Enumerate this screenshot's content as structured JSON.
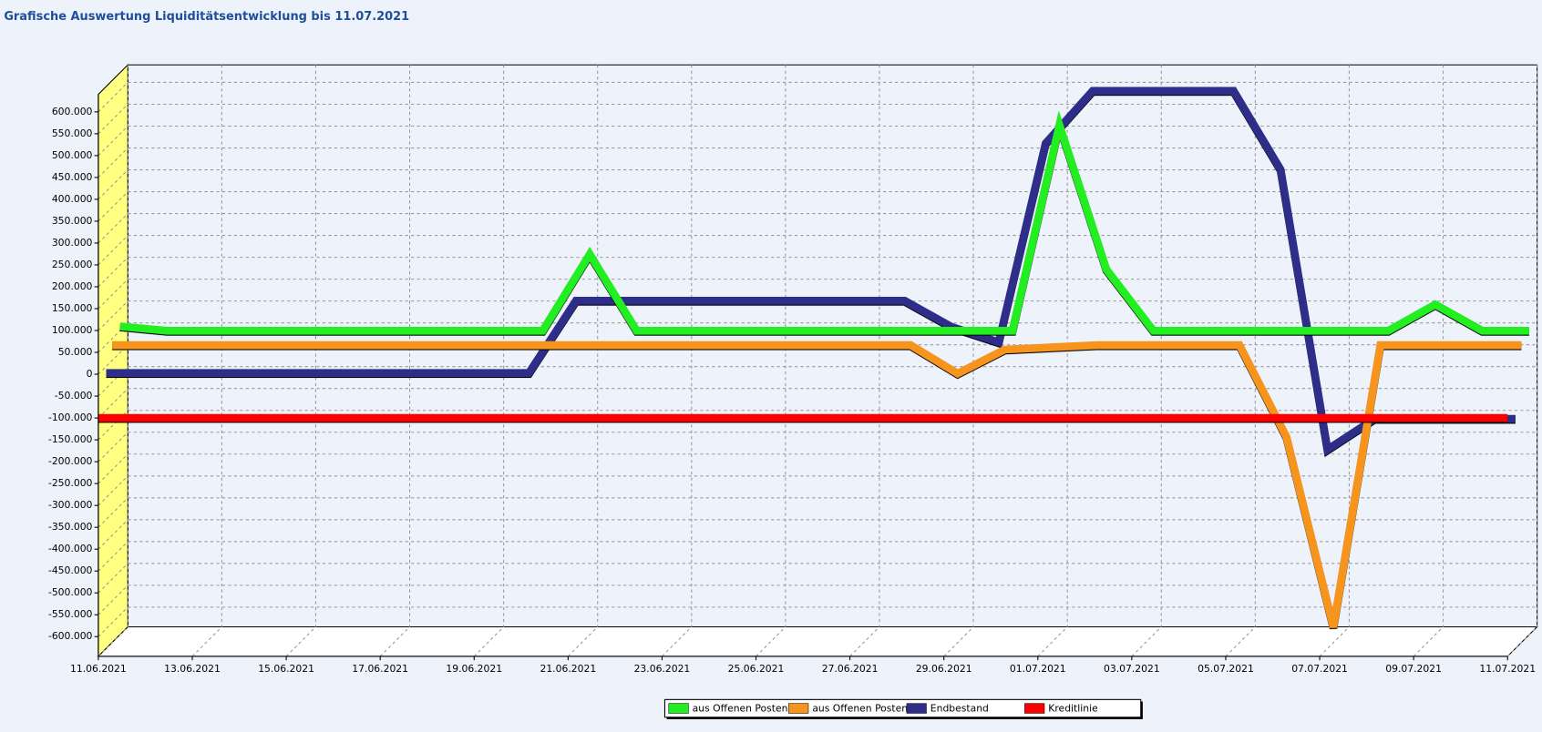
{
  "chart_data": {
    "type": "line3d",
    "title": "Grafische Auswertung Liquiditätsentwicklung  bis 11.07.2021",
    "categories": [
      "11.06.2021",
      null,
      "13.06.2021",
      null,
      "15.06.2021",
      null,
      "17.06.2021",
      null,
      "19.06.2021",
      null,
      "21.06.2021",
      null,
      "23.06.2021",
      null,
      "25.06.2021",
      null,
      "27.06.2021",
      null,
      "29.06.2021",
      null,
      "01.07.2021",
      null,
      "03.07.2021",
      null,
      "05.07.2021",
      null,
      "07.07.2021",
      null,
      "09.07.2021",
      null,
      "11.07.2021"
    ],
    "series": [
      {
        "name": "aus Offenen Posten",
        "color": "#22ee22",
        "values": [
          60000,
          50000,
          50000,
          50000,
          50000,
          50000,
          50000,
          50000,
          50000,
          50000,
          225000,
          50000,
          50000,
          50000,
          50000,
          50000,
          50000,
          50000,
          50000,
          50000,
          520000,
          190000,
          50000,
          50000,
          50000,
          50000,
          50000,
          50000,
          110000,
          50000,
          50000
        ]
      },
      {
        "name": "aus Offenen Posten",
        "color": "#f7941d",
        "values": [
          35000,
          35000,
          35000,
          35000,
          35000,
          35000,
          35000,
          35000,
          35000,
          35000,
          35000,
          35000,
          35000,
          35000,
          35000,
          35000,
          35000,
          35000,
          -30000,
          25000,
          30000,
          35000,
          35000,
          35000,
          35000,
          -175000,
          -610000,
          35000,
          35000,
          35000,
          35000
        ]
      },
      {
        "name": "Endbestand",
        "color": "#2e2e8a",
        "values": [
          -15000,
          -15000,
          -15000,
          -15000,
          -15000,
          -15000,
          -15000,
          -15000,
          -15000,
          -15000,
          150000,
          150000,
          150000,
          150000,
          150000,
          150000,
          150000,
          150000,
          90000,
          55000,
          510000,
          630000,
          630000,
          630000,
          630000,
          450000,
          -190000,
          -120000,
          -120000,
          -120000,
          -120000
        ]
      },
      {
        "name": "Kreditlinie",
        "color": "#ff0000",
        "values": [
          -100000,
          -100000,
          -100000,
          -100000,
          -100000,
          -100000,
          -100000,
          -100000,
          -100000,
          -100000,
          -100000,
          -100000,
          -100000,
          -100000,
          -100000,
          -100000,
          -100000,
          -100000,
          -100000,
          -100000,
          -100000,
          -100000,
          -100000,
          -100000,
          -100000,
          -100000,
          -100000,
          -100000,
          -100000,
          -100000,
          -100000
        ]
      }
    ],
    "ylim": [
      -645000,
      640000
    ],
    "yticks": [
      {
        "value": -600000,
        "label": "-600.000"
      },
      {
        "value": -550000,
        "label": "-550.000"
      },
      {
        "value": -500000,
        "label": "-500.000"
      },
      {
        "value": -450000,
        "label": "-450.000"
      },
      {
        "value": -400000,
        "label": "-400.000"
      },
      {
        "value": -350000,
        "label": "-350.000"
      },
      {
        "value": -300000,
        "label": "-300.000"
      },
      {
        "value": -250000,
        "label": "-250.000"
      },
      {
        "value": -200000,
        "label": "-200.000"
      },
      {
        "value": -150000,
        "label": "-150.000"
      },
      {
        "value": -100000,
        "label": "-100.000"
      },
      {
        "value": -50000,
        "label": "-50.000"
      },
      0,
      {
        "value": 50000,
        "label": "50.000"
      },
      {
        "value": 100000,
        "label": "100.000"
      },
      {
        "value": 150000,
        "label": "150.000"
      },
      {
        "value": 200000,
        "label": "200.000"
      },
      {
        "value": 250000,
        "label": "250.000"
      },
      {
        "value": 300000,
        "label": "300.000"
      },
      {
        "value": 350000,
        "label": "350.000"
      },
      {
        "value": 400000,
        "label": "400.000"
      },
      {
        "value": 450000,
        "label": "450.000"
      },
      {
        "value": 500000,
        "label": "500.000"
      },
      {
        "value": 550000,
        "label": "550.000"
      },
      {
        "value": 600000,
        "label": "600.000"
      }
    ],
    "grid": true,
    "legend": "bottom"
  }
}
